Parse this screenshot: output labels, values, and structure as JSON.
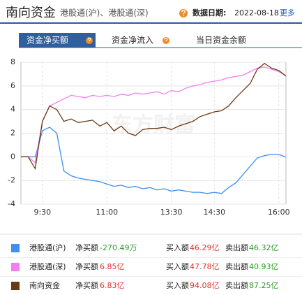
{
  "header": {
    "title": "南向资金",
    "subtitle": "港股通(沪)、港股通(深)",
    "date_label": "数据日期:",
    "date": "2022-08-18",
    "more": "更多"
  },
  "tabs": [
    "资金净买额",
    "资金净流入",
    "当日资金余额"
  ],
  "chart_data": {
    "type": "line",
    "watermark": "东方财富",
    "categories": [
      null,
      null,
      null,
      "9:30",
      null,
      null,
      null,
      null,
      null,
      null,
      null,
      null,
      "11:00",
      null,
      null,
      null,
      null,
      null,
      null,
      null,
      null,
      "13:30",
      null,
      null,
      null,
      null,
      null,
      "14:30",
      null,
      null,
      null,
      null,
      null,
      null,
      null,
      null,
      "16:00",
      null
    ],
    "ylim": [
      -4,
      8
    ],
    "yticks": [
      -4,
      -2,
      0,
      2,
      4,
      6,
      8
    ],
    "grid": true,
    "series": [
      {
        "name": "港股通(沪)",
        "color": "#3d8ff2",
        "values": [
          0,
          0,
          0,
          2.2,
          2.5,
          2.0,
          -1.2,
          -1.6,
          -1.8,
          -1.9,
          -2.0,
          -2.1,
          -2.3,
          -2.5,
          -2.4,
          -2.6,
          -2.5,
          -2.7,
          -2.6,
          -2.8,
          -2.7,
          -2.9,
          -2.8,
          -2.9,
          -3.0,
          -3.0,
          -3.1,
          -3.0,
          -3.1,
          -2.6,
          -2.2,
          -1.5,
          -0.8,
          -0.1,
          0.1,
          0.2,
          0.2,
          -0.03
        ]
      },
      {
        "name": "港股通(深)",
        "color": "#f27ff2",
        "values": [
          0,
          0,
          -0.5,
          3.0,
          4.3,
          4.6,
          4.9,
          5.2,
          5.1,
          5.0,
          5.2,
          5.1,
          5.2,
          5.1,
          5.3,
          5.2,
          5.4,
          5.3,
          5.4,
          5.5,
          5.3,
          5.6,
          5.5,
          5.8,
          6.0,
          6.1,
          6.3,
          6.4,
          6.5,
          6.7,
          6.8,
          6.9,
          7.2,
          7.5,
          7.6,
          7.4,
          7.2,
          6.85
        ]
      },
      {
        "name": "南向资金",
        "color": "#6b3a12",
        "values": [
          0,
          0,
          -1.0,
          3.0,
          4.3,
          4.0,
          3.0,
          3.2,
          2.9,
          3.0,
          3.1,
          2.6,
          2.9,
          2.2,
          2.6,
          2.0,
          1.8,
          2.3,
          2.4,
          2.4,
          2.5,
          2.3,
          2.6,
          2.8,
          3.0,
          3.4,
          3.6,
          3.8,
          3.9,
          4.3,
          5.0,
          5.6,
          6.2,
          7.4,
          7.9,
          7.5,
          7.3,
          6.83
        ]
      }
    ]
  },
  "legend_table": {
    "net_label": "净买额",
    "buy_label": "买入额",
    "sell_label": "卖出额",
    "rows": [
      {
        "name": "港股通(沪)",
        "net": "-270.49万",
        "buy": "46.29亿",
        "sell": "46.32亿"
      },
      {
        "name": "港股通(深)",
        "net": "6.85亿",
        "buy": "47.78亿",
        "sell": "40.93亿"
      },
      {
        "name": "南向资金",
        "net": "6.83亿",
        "buy": "94.08亿",
        "sell": "87.25亿"
      }
    ]
  }
}
